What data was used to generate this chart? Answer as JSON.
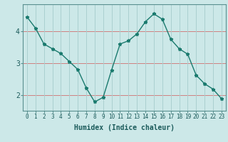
{
  "x": [
    0,
    1,
    2,
    3,
    4,
    5,
    6,
    7,
    8,
    9,
    10,
    11,
    12,
    13,
    14,
    15,
    16,
    17,
    18,
    19,
    20,
    21,
    22,
    23
  ],
  "y": [
    4.45,
    4.1,
    3.6,
    3.45,
    3.3,
    3.05,
    2.8,
    2.22,
    1.78,
    1.92,
    2.78,
    3.6,
    3.7,
    3.92,
    4.3,
    4.55,
    4.38,
    3.75,
    3.45,
    3.28,
    2.62,
    2.35,
    2.18,
    1.88
  ],
  "line_color": "#1a7a6e",
  "marker": "*",
  "marker_size": 3.5,
  "bg_color": "#cce8e8",
  "grid_color": "#aad0d0",
  "grid_red_color": "#d08080",
  "xlabel": "Humidex (Indice chaleur)",
  "ylim": [
    1.5,
    4.85
  ],
  "yticks": [
    2,
    3,
    4
  ],
  "xticks": [
    0,
    1,
    2,
    3,
    4,
    5,
    6,
    7,
    8,
    9,
    10,
    11,
    12,
    13,
    14,
    15,
    16,
    17,
    18,
    19,
    20,
    21,
    22,
    23
  ],
  "tick_fontsize": 5.5,
  "xlabel_fontsize": 7.0
}
